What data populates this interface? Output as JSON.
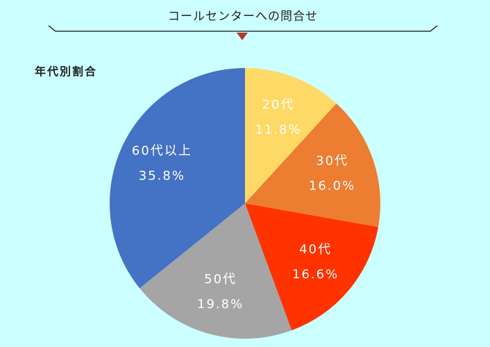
{
  "chart_data": {
    "type": "pie",
    "title": "コールセンターへの問合せ",
    "subtitle": "年代別割合",
    "categories": [
      "20代",
      "30代",
      "40代",
      "50代",
      "60代以上"
    ],
    "values": [
      11.8,
      16.0,
      16.6,
      19.8,
      35.8
    ],
    "value_labels": [
      "11.8%",
      "16.0%",
      "16.6%",
      "19.8%",
      "35.8%"
    ],
    "colors": [
      "#ffd966",
      "#ed7d31",
      "#ff3300",
      "#a5a5a5",
      "#4472c4"
    ]
  }
}
